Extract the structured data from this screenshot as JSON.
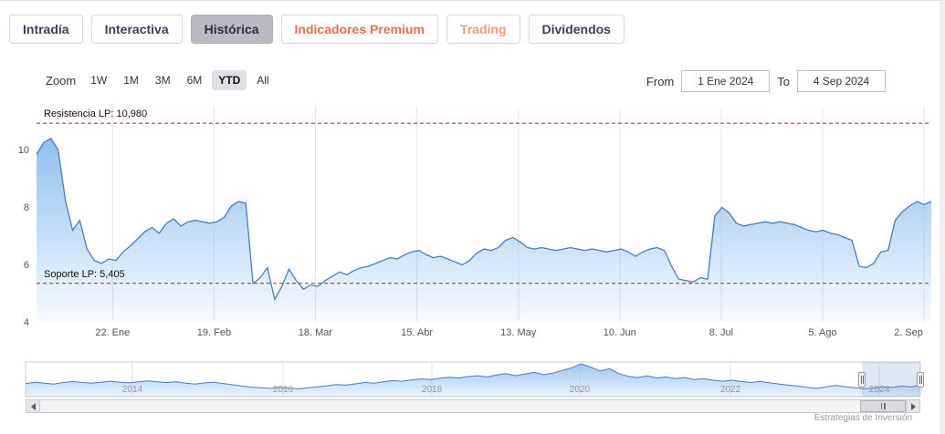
{
  "tabs": [
    {
      "label": "Intradía",
      "selected": false,
      "variant": "default"
    },
    {
      "label": "Interactiva",
      "selected": false,
      "variant": "default"
    },
    {
      "label": "Histórica",
      "selected": true,
      "variant": "selected"
    },
    {
      "label": "Indicadores Premium",
      "selected": false,
      "variant": "premium"
    },
    {
      "label": "Trading",
      "selected": false,
      "variant": "trading"
    },
    {
      "label": "Dividendos",
      "selected": false,
      "variant": "default"
    }
  ],
  "toolbar": {
    "zoom_label": "Zoom",
    "ranges": [
      "1W",
      "1M",
      "3M",
      "6M",
      "YTD",
      "All"
    ],
    "selected_range": "YTD",
    "from_label": "From",
    "from_value": "1 Ene 2024",
    "to_label": "To",
    "to_value": "4 Sep 2024"
  },
  "chart_data": [
    {
      "name": "main-price-chart",
      "type": "area",
      "title": "",
      "x_range": [
        "1 Ene 2024",
        "4 Sep 2024"
      ],
      "ylim": [
        3.8,
        11.5
      ],
      "y_ticks": [
        "10",
        "8",
        "6",
        "4"
      ],
      "x_tick_labels": [
        "22. Ene",
        "19. Feb",
        "18. Mar",
        "15. Abr",
        "13. May",
        "10. Jun",
        "8. Jul",
        "5. Ago",
        "2. Sep"
      ],
      "grid": "vertical-only",
      "annotations": [
        {
          "label": "Resistencia LP: 10,980",
          "value": 10.98
        },
        {
          "label": "Soporte LP: 5,405",
          "value": 5.405
        }
      ],
      "values": [
        9.9,
        10.3,
        10.45,
        10.05,
        8.3,
        7.25,
        7.6,
        6.6,
        6.2,
        6.1,
        6.25,
        6.2,
        6.5,
        6.7,
        6.95,
        7.2,
        7.35,
        7.15,
        7.5,
        7.65,
        7.4,
        7.55,
        7.6,
        7.55,
        7.5,
        7.55,
        7.7,
        8.1,
        8.25,
        8.2,
        5.4,
        5.6,
        5.95,
        4.85,
        5.3,
        5.9,
        5.5,
        5.2,
        5.35,
        5.3,
        5.5,
        5.65,
        5.8,
        5.7,
        5.85,
        5.95,
        6.0,
        6.1,
        6.2,
        6.3,
        6.25,
        6.4,
        6.5,
        6.55,
        6.4,
        6.3,
        6.35,
        6.25,
        6.15,
        6.05,
        6.2,
        6.45,
        6.6,
        6.55,
        6.65,
        6.9,
        7.0,
        6.85,
        6.65,
        6.6,
        6.65,
        6.6,
        6.55,
        6.6,
        6.65,
        6.6,
        6.55,
        6.6,
        6.55,
        6.5,
        6.55,
        6.6,
        6.5,
        6.35,
        6.5,
        6.6,
        6.65,
        6.55,
        6.0,
        5.55,
        5.5,
        5.45,
        5.6,
        5.55,
        7.75,
        8.05,
        7.85,
        7.5,
        7.4,
        7.45,
        7.5,
        7.55,
        7.5,
        7.55,
        7.5,
        7.45,
        7.35,
        7.25,
        7.2,
        7.25,
        7.15,
        7.1,
        7.0,
        6.9,
        6.0,
        5.95,
        6.1,
        6.5,
        6.55,
        7.6,
        7.9,
        8.1,
        8.25,
        8.15,
        8.25
      ]
    },
    {
      "name": "navigator-overview-chart",
      "type": "area",
      "title": "",
      "x_range": [
        "2012",
        "2024"
      ],
      "x_tick_labels": [
        "2014",
        "2016",
        "2018",
        "2020",
        "2022",
        "2024"
      ],
      "selection": {
        "start": 0.935,
        "end": 1.0
      },
      "values": [
        0.4,
        0.44,
        0.41,
        0.38,
        0.43,
        0.46,
        0.43,
        0.41,
        0.44,
        0.47,
        0.44,
        0.42,
        0.45,
        0.48,
        0.45,
        0.43,
        0.45,
        0.41,
        0.38,
        0.42,
        0.44,
        0.4,
        0.36,
        0.32,
        0.29,
        0.27,
        0.25,
        0.28,
        0.26,
        0.24,
        0.27,
        0.3,
        0.33,
        0.37,
        0.35,
        0.39,
        0.43,
        0.41,
        0.45,
        0.49,
        0.47,
        0.51,
        0.54,
        0.52,
        0.56,
        0.59,
        0.57,
        0.61,
        0.64,
        0.6,
        0.66,
        0.7,
        0.64,
        0.69,
        0.74,
        0.67,
        0.72,
        0.8,
        0.88,
        1.0,
        0.9,
        0.78,
        0.85,
        0.7,
        0.62,
        0.58,
        0.63,
        0.57,
        0.6,
        0.55,
        0.58,
        0.52,
        0.55,
        0.5,
        0.47,
        0.5,
        0.46,
        0.43,
        0.46,
        0.42,
        0.38,
        0.35,
        0.32,
        0.28,
        0.25,
        0.3,
        0.34,
        0.3,
        0.27,
        0.24,
        0.26,
        0.3,
        0.28,
        0.32,
        0.3,
        0.35
      ]
    }
  ],
  "attribution": "Estrategias de Inversión",
  "colors": {
    "line": "#4a7ebb",
    "area": "#7cb5ec",
    "annotation": "#b22222",
    "gridline": "#e7e7e7",
    "tab_text": "#3f3d56",
    "tab_selected_bg": "#b9bac2",
    "premium_text": "#ed6b4f",
    "trading_text": "#f19a7e",
    "range_selected_bg": "#dde0e6",
    "navigator_mask": "rgba(102,133,194,0.2)"
  }
}
